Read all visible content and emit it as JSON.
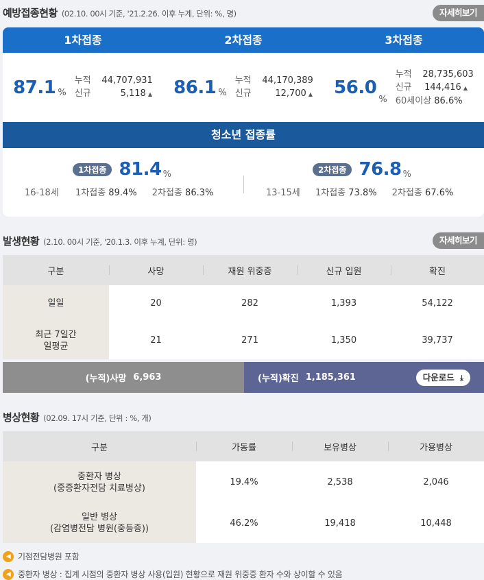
{
  "vaccination": {
    "title": "예방접종현황",
    "subtitle": "(02.10. 00시 기준, '21.2.26. 이후 누계, 단위: %, 명)",
    "detail_label": "자세히보기",
    "doses": [
      {
        "header": "1차접종",
        "rate": "87.1",
        "pct": "%",
        "rows": [
          {
            "k": "누적",
            "v": "44,707,931"
          },
          {
            "k": "신규",
            "v": "5,118",
            "up": true
          }
        ]
      },
      {
        "header": "2차접종",
        "rate": "86.1",
        "pct": "%",
        "rows": [
          {
            "k": "누적",
            "v": "44,170,389"
          },
          {
            "k": "신규",
            "v": "12,700",
            "up": true
          }
        ]
      },
      {
        "header": "3차접종",
        "rate": "56.0",
        "pct": "%",
        "rows": [
          {
            "k": "누적",
            "v": "28,735,603"
          },
          {
            "k": "신규",
            "v": "144,416",
            "up": true
          },
          {
            "k": "60세이상",
            "v": "86.6%"
          }
        ]
      }
    ],
    "teen": {
      "title": "청소년 접종률",
      "groups": [
        {
          "age": "16-18세",
          "pill": "1차접종",
          "rate": "81.4",
          "pct": "%",
          "first_label": "1차접종",
          "first_value": "89.4%",
          "second_label": "2차접종",
          "second_value": "86.3%"
        },
        {
          "age": "13-15세",
          "pill": "2차접종",
          "rate": "76.8",
          "pct": "%",
          "first_label": "1차접종",
          "first_value": "73.8%",
          "second_label": "2차접종",
          "second_value": "67.6%"
        }
      ]
    }
  },
  "outbreak": {
    "title": "발생현황",
    "subtitle": "(2.10. 00시 기준, '20.1.3. 이후 누계, 단위: 명)",
    "detail_label": "자세히보기",
    "headers": [
      "구분",
      "사망",
      "재원 위중증",
      "신규 입원",
      "확진"
    ],
    "rows": [
      {
        "label": "일일",
        "cells": [
          "20",
          "282",
          "1,393",
          "54,122"
        ]
      },
      {
        "label_line1": "최근 7일간",
        "label_line2": "일평균",
        "cells": [
          "21",
          "271",
          "1,350",
          "39,737"
        ]
      }
    ],
    "cum_death_label": "(누적)사망",
    "cum_death_value": "6,963",
    "cum_conf_label": "(누적)확진",
    "cum_conf_value": "1,185,361",
    "download_label": "다운로드"
  },
  "beds": {
    "title": "병상현황",
    "subtitle": "(02.09. 17시 기준, 단위 : %, 개)",
    "headers": [
      "구분",
      "가동률",
      "보유병상",
      "가용병상"
    ],
    "rows": [
      {
        "label_line1": "중환자 병상",
        "label_line2": "(중증환자전담 치료병상)",
        "cells": [
          "19.4%",
          "2,538",
          "2,046"
        ]
      },
      {
        "label_line1": "일반 병상",
        "label_line2": "(감염병전담 병원(중등증))",
        "cells": [
          "46.2%",
          "19,418",
          "10,448"
        ]
      }
    ]
  },
  "notes": [
    "기점전담병원 포함",
    "중환자 병상 : 집계 시점의 중환자 병상 사용(입원) 현황으로 재원 위중증 환자 수와 상이할 수 있음"
  ],
  "colors": {
    "accent": "#1a6fc9",
    "teen_bar": "#1a5a9c",
    "confirmed_bar": "#5d6594",
    "death_bar": "#8e8e8e"
  }
}
